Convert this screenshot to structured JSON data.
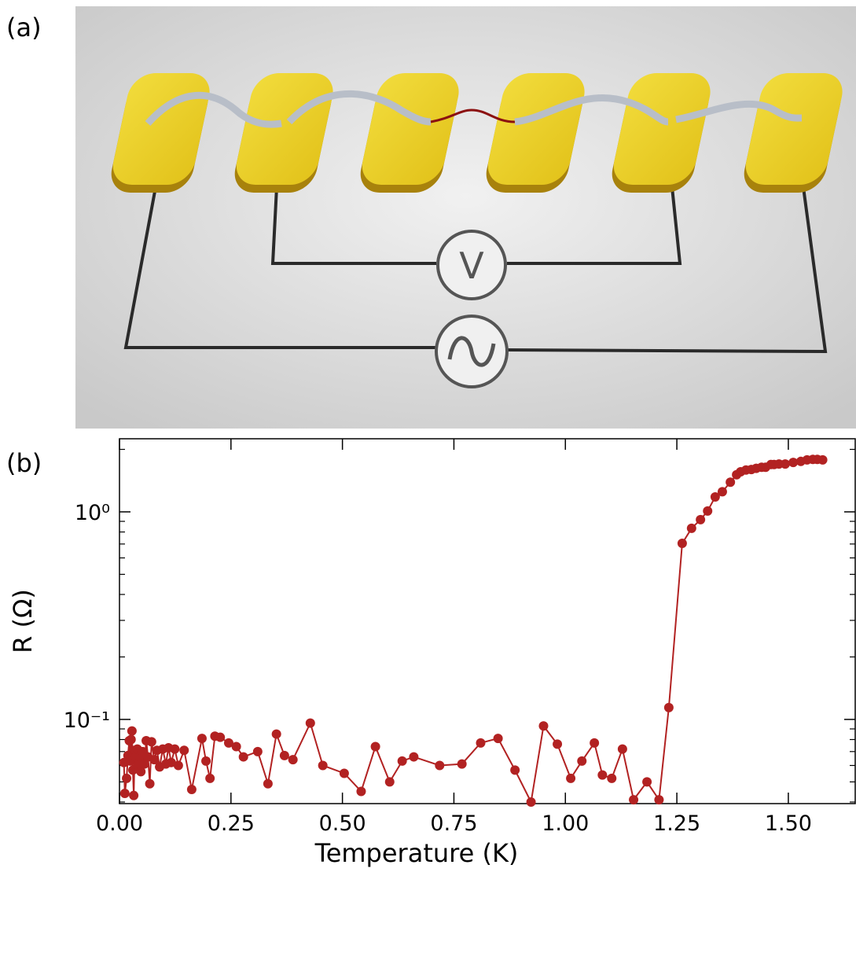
{
  "panel_labels": [
    "(a)",
    "(b)"
  ],
  "diagram": {
    "voltmeter_label": "V"
  },
  "chart_data": {
    "type": "line",
    "xlabel": "Temperature (K)",
    "ylabel": "R (Ω)",
    "xlim": [
      0,
      1.65
    ],
    "ylim": [
      0.0393,
      2.25
    ],
    "yscale": "log",
    "xticks": [
      {
        "value": 0,
        "label": "0.00"
      },
      0.25,
      {
        "value": 0.5,
        "label": "0.50"
      },
      0.75,
      {
        "value": 1,
        "label": "1.00"
      },
      1.25,
      {
        "value": 1.5,
        "label": "1.50"
      }
    ],
    "yticks": [
      {
        "value": 0.1,
        "label": "10⁻¹"
      },
      {
        "value": 1,
        "label": "10⁰"
      }
    ],
    "yminorticks": [
      0.04,
      0.05,
      0.06,
      0.07,
      0.08,
      0.09,
      0.2,
      0.3,
      0.4,
      0.5,
      0.6,
      0.7,
      0.8,
      0.9,
      2
    ],
    "series": [
      {
        "color": "#b22222",
        "x": [
          0.01,
          0.012,
          0.016,
          0.019,
          0.022,
          0.024,
          0.026,
          0.028,
          0.03,
          0.032,
          0.034,
          0.036,
          0.038,
          0.04,
          0.042,
          0.045,
          0.048,
          0.052,
          0.056,
          0.06,
          0.064,
          0.068,
          0.072,
          0.078,
          0.084,
          0.09,
          0.097,
          0.104,
          0.11,
          0.116,
          0.124,
          0.132,
          0.145,
          0.162,
          0.185,
          0.194,
          0.203,
          0.214,
          0.226,
          0.245,
          0.262,
          0.278,
          0.31,
          0.333,
          0.352,
          0.37,
          0.389,
          0.428,
          0.456,
          0.504,
          0.542,
          0.574,
          0.606,
          0.634,
          0.66,
          0.718,
          0.768,
          0.81,
          0.849,
          0.887,
          0.923,
          0.951,
          0.982,
          1.012,
          1.037,
          1.065,
          1.083,
          1.104,
          1.128,
          1.153,
          1.183,
          1.21,
          1.232,
          1.262,
          1.283,
          1.303,
          1.319,
          1.336,
          1.352,
          1.37,
          1.384,
          1.393,
          1.405,
          1.417,
          1.428,
          1.44,
          1.449,
          1.461,
          1.468,
          1.479,
          1.493,
          1.511,
          1.528,
          1.542,
          1.555,
          1.565,
          1.577
        ],
        "values": [
          0.062,
          0.044,
          0.052,
          0.067,
          0.079,
          0.063,
          0.08,
          0.088,
          0.057,
          0.043,
          0.071,
          0.066,
          0.058,
          0.072,
          0.06,
          0.066,
          0.056,
          0.07,
          0.061,
          0.079,
          0.066,
          0.049,
          0.078,
          0.064,
          0.071,
          0.059,
          0.072,
          0.061,
          0.073,
          0.062,
          0.072,
          0.06,
          0.071,
          0.046,
          0.081,
          0.063,
          0.052,
          0.083,
          0.082,
          0.077,
          0.074,
          0.066,
          0.07,
          0.049,
          0.085,
          0.067,
          0.064,
          0.096,
          0.06,
          0.055,
          0.045,
          0.074,
          0.05,
          0.063,
          0.066,
          0.06,
          0.061,
          0.077,
          0.081,
          0.057,
          0.04,
          0.093,
          0.076,
          0.052,
          0.063,
          0.077,
          0.054,
          0.052,
          0.072,
          0.041,
          0.05,
          0.041,
          0.114,
          0.705,
          0.833,
          0.917,
          1.01,
          1.18,
          1.25,
          1.39,
          1.51,
          1.56,
          1.59,
          1.6,
          1.62,
          1.64,
          1.64,
          1.69,
          1.69,
          1.7,
          1.7,
          1.73,
          1.75,
          1.78,
          1.79,
          1.79,
          1.78
        ]
      }
    ]
  }
}
